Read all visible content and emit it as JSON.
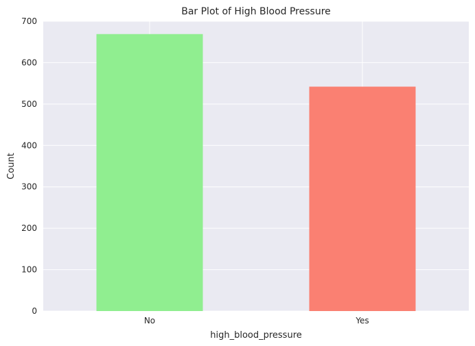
{
  "chart_data": {
    "type": "bar",
    "title": "Bar Plot of High Blood Pressure",
    "xlabel": "high_blood_pressure",
    "ylabel": "Count",
    "categories": [
      "No",
      "Yes"
    ],
    "values": [
      669,
      542
    ],
    "colors": [
      "#90ee90",
      "#fa8072"
    ],
    "ylim": [
      0,
      700
    ],
    "yticks": [
      0,
      100,
      200,
      300,
      400,
      500,
      600,
      700
    ],
    "grid": true,
    "background": "#eaeaf2",
    "grid_color": "#ffffff"
  }
}
